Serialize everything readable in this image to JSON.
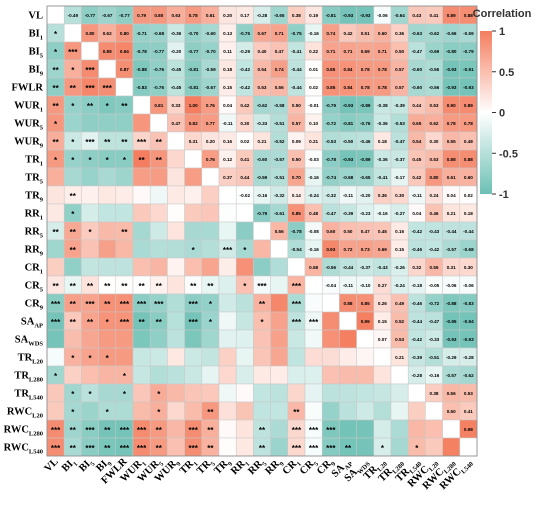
{
  "chart_data": {
    "type": "heatmap",
    "layout": "lower triangle: significance stars, upper triangle: coefficients",
    "variables": [
      {
        "name": "VL",
        "sub": ""
      },
      {
        "name": "BI",
        "sub": "1"
      },
      {
        "name": "BI",
        "sub": "5"
      },
      {
        "name": "BI",
        "sub": "9"
      },
      {
        "name": "FWLR",
        "sub": ""
      },
      {
        "name": "WUR",
        "sub": "1"
      },
      {
        "name": "WUR",
        "sub": "5"
      },
      {
        "name": "WUR",
        "sub": "9"
      },
      {
        "name": "TR",
        "sub": "1"
      },
      {
        "name": "TR",
        "sub": "5"
      },
      {
        "name": "TR",
        "sub": "9"
      },
      {
        "name": "RR",
        "sub": "1"
      },
      {
        "name": "RR",
        "sub": "5"
      },
      {
        "name": "RR",
        "sub": "9"
      },
      {
        "name": "CR",
        "sub": "1"
      },
      {
        "name": "CR",
        "sub": "5"
      },
      {
        "name": "CR",
        "sub": "9"
      },
      {
        "name": "SA",
        "sub": "AP"
      },
      {
        "name": "SA",
        "sub": "WDS"
      },
      {
        "name": "TR",
        "sub": "L20"
      },
      {
        "name": "TR",
        "sub": "L280"
      },
      {
        "name": "TR",
        "sub": "L540"
      },
      {
        "name": "RWC",
        "sub": "L20"
      },
      {
        "name": "RWC",
        "sub": "L280"
      },
      {
        "name": "RWC",
        "sub": "L540"
      }
    ],
    "upper": [
      [
        -0.49,
        -0.77,
        -0.67,
        -0.77,
        0.79,
        0.8,
        0.63,
        0.78,
        0.61,
        0.2,
        0.17,
        -0.28,
        -0.65,
        0.38,
        0.19,
        -0.81,
        -0.93,
        -0.93,
        -0.06,
        -0.64,
        0.43,
        0.41,
        0.89,
        0.88
      ],
      [
        0.8,
        0.62,
        0.8,
        -0.71,
        -0.68,
        -0.36,
        -0.7,
        -0.6,
        0.13,
        -0.75,
        0.67,
        0.71,
        -0.75,
        -0.16,
        0.74,
        0.42,
        0.51,
        0.6,
        0.36,
        -0.63,
        -0.62,
        -0.66,
        -0.59
      ],
      [
        0.89,
        0.94,
        -0.78,
        -0.77,
        -0.2,
        -0.77,
        -0.7,
        0.11,
        -0.29,
        0.4,
        0.47,
        -0.41,
        0.22,
        0.71,
        0.71,
        0.69,
        0.71,
        0.5,
        -0.47,
        -0.69,
        -0.8,
        -0.79
      ],
      [
        0.87,
        -0.88,
        -0.76,
        -0.45,
        -0.81,
        -0.59,
        0.18,
        -0.42,
        0.54,
        0.74,
        -0.44,
        0.01,
        0.85,
        0.84,
        0.78,
        0.78,
        0.57,
        -0.6,
        -0.56,
        -0.93,
        -0.91
      ],
      [
        -0.83,
        -0.76,
        -0.45,
        -0.81,
        -0.67,
        0.15,
        -0.42,
        0.53,
        0.56,
        -0.44,
        0.02,
        0.85,
        0.84,
        0.78,
        0.78,
        0.57,
        -0.6,
        -0.56,
        -0.93,
        -0.93
      ],
      [
        0.81,
        0.33,
        1.0,
        0.76,
        0.04,
        0.42,
        -0.62,
        -0.58,
        0.5,
        -0.01,
        -0.79,
        -0.93,
        -0.89,
        -0.38,
        -0.39,
        0.44,
        0.53,
        0.9,
        0.89
      ],
      [
        0.47,
        0.82,
        0.77,
        -0.11,
        0.3,
        -0.33,
        -0.51,
        0.57,
        0.1,
        -0.72,
        -0.81,
        -0.76,
        -0.36,
        -0.53,
        0.65,
        0.62,
        0.78,
        0.78
      ],
      [
        0.31,
        0.2,
        0.16,
        0.02,
        0.21,
        -0.52,
        0.09,
        0.21,
        -0.53,
        -0.5,
        -0.46,
        0.18,
        -0.47,
        0.54,
        0.3,
        0.55,
        0.48
      ],
      [
        0.76,
        0.12,
        0.41,
        -0.6,
        -0.57,
        0.5,
        -0.03,
        -0.78,
        -0.93,
        -0.89,
        -0.36,
        -0.37,
        0.45,
        0.53,
        0.88,
        0.88
      ],
      [
        0.37,
        0.44,
        -0.59,
        -0.51,
        0.7,
        -0.16,
        -0.74,
        -0.68,
        -0.65,
        -0.41,
        -0.17,
        0.42,
        0.8,
        0.61,
        0.6
      ],
      [
        -0.02,
        -0.16,
        -0.32,
        0.14,
        -0.24,
        -0.32,
        -0.11,
        -0.2,
        0.36,
        0.3,
        -0.11,
        0.24,
        0.04,
        0.02
      ],
      [
        -0.79,
        -0.61,
        0.85,
        0.48,
        -0.47,
        -0.39,
        -0.23,
        -0.16,
        -0.27,
        0.04,
        0.46,
        0.21,
        0.18
      ],
      [
        0.56,
        -0.78,
        -0.08,
        0.6,
        0.5,
        0.47,
        0.45,
        0.16,
        -0.42,
        -0.43,
        -0.44,
        -0.44
      ],
      [
        -0.54,
        -0.16,
        0.93,
        0.72,
        0.73,
        0.69,
        0.15,
        -0.46,
        -0.42,
        -0.57,
        -0.68
      ],
      [
        0.58,
        -0.56,
        -0.44,
        -0.37,
        -0.43,
        -0.26,
        0.32,
        0.55,
        0.31,
        0.3
      ],
      [
        -0.04,
        -0.11,
        -0.1,
        0.27,
        -0.24,
        -0.18,
        -0.05,
        -0.06,
        -0.06
      ],
      [
        0.88,
        0.85,
        0.26,
        0.49,
        -0.46,
        -0.72,
        -0.88,
        -0.83
      ],
      [
        0.99,
        0.15,
        0.52,
        -0.44,
        -0.47,
        -0.95,
        -0.94
      ],
      [
        0.07,
        0.53,
        -0.42,
        -0.33,
        -0.93,
        -0.93
      ],
      [
        0.21,
        -0.39,
        -0.51,
        -0.29,
        -0.28
      ],
      [
        -0.28,
        -0.16,
        -0.57,
        -0.62
      ],
      [
        0.38,
        0.56,
        0.53
      ],
      [
        0.5,
        0.41
      ],
      [
        0.98
      ]
    ],
    "lower_stars": [
      [
        "**"
      ],
      [
        "*",
        "**"
      ],
      [
        "*",
        "***",
        "***"
      ],
      [
        "**",
        "*",
        "***",
        "***"
      ],
      [
        "**",
        "**",
        "***",
        "***",
        "**"
      ],
      [
        "**",
        "*",
        "**",
        "*",
        "**",
        "**"
      ],
      [
        "*",
        "",
        "",
        "",
        "",
        "",
        ""
      ],
      [
        "**",
        "*",
        "***",
        "**",
        "**",
        "***",
        "**",
        ""
      ],
      [
        "*",
        "*",
        "*",
        "*",
        "*",
        "**",
        "**",
        "",
        "**"
      ],
      [
        "",
        "",
        "",
        "",
        "",
        "",
        "",
        "",
        "",
        ""
      ],
      [
        "",
        "**",
        "",
        "",
        "",
        "",
        "",
        "",
        "",
        "",
        ""
      ],
      [
        "",
        "*",
        "",
        "",
        "",
        "",
        "",
        "",
        "",
        "",
        "",
        ""
      ],
      [
        "**",
        "**",
        "*",
        "",
        "**",
        "",
        "",
        "",
        "",
        "",
        "",
        "",
        ""
      ],
      [
        "",
        "**",
        "",
        "",
        "",
        "",
        "",
        "",
        "*",
        "",
        "***",
        "*",
        ""
      ],
      [
        "",
        "",
        "",
        "",
        "",
        "",
        "",
        "",
        "",
        "",
        "",
        "",
        "",
        ""
      ],
      [
        "**",
        "**",
        "**",
        "**",
        "**",
        "**",
        "**",
        "",
        "**",
        "**",
        "",
        "*",
        "***",
        "",
        "***",
        ""
      ],
      [
        "***",
        "**",
        "***",
        "**",
        "***",
        "***",
        "***",
        "",
        "***",
        "*",
        "",
        "",
        "**",
        "",
        "***",
        ""
      ],
      [
        "***",
        "**",
        "**",
        "*",
        "***",
        "**",
        "**",
        "",
        "***",
        "*",
        "",
        "",
        "*",
        "",
        "***",
        "***",
        ""
      ],
      [
        "",
        "",
        "",
        "",
        "",
        "",
        "",
        "",
        "",
        "",
        "",
        "",
        "",
        "",
        "",
        "",
        ""
      ],
      [
        "",
        "*",
        "*",
        "*",
        "",
        "",
        "",
        "",
        "",
        "",
        "",
        "",
        "",
        "",
        "",
        "",
        "",
        ""
      ],
      [
        "*",
        "",
        "",
        "",
        "*",
        "",
        "",
        "",
        "",
        "",
        "",
        "",
        "",
        "",
        "",
        "",
        "",
        "",
        ""
      ],
      [
        "",
        "*",
        "*",
        "",
        "*",
        "",
        "*",
        "",
        "",
        "",
        "",
        "",
        "",
        "",
        "",
        "",
        "",
        "",
        "",
        ""
      ],
      [
        "",
        "*",
        "",
        "*",
        "",
        "",
        "*",
        "",
        "",
        "**",
        "",
        "",
        "",
        "",
        "**",
        "",
        "",
        "",
        "",
        "",
        ""
      ],
      [
        "***",
        "**",
        "***",
        "**",
        "***",
        "***",
        "**",
        "",
        "***",
        "**",
        "",
        "",
        "**",
        "",
        "***",
        "***",
        "***",
        "",
        "",
        "",
        "",
        ""
      ],
      [
        "***",
        "**",
        "***",
        "**",
        "***",
        "***",
        "**",
        "",
        "***",
        "**",
        "",
        "",
        "**",
        "",
        "***",
        "***",
        "***",
        "**",
        "",
        "*",
        "",
        "*",
        ""
      ]
    ],
    "colorbar": {
      "title": "Correlation",
      "range": [
        -1,
        1
      ],
      "ticks": [
        1,
        0.5,
        0,
        -0.5,
        -1
      ],
      "tick_labels": [
        "1",
        "0.5",
        "0",
        "-0.5",
        "-1"
      ],
      "colors": {
        "positive": "#f47e5f",
        "neutral": "#ffffff",
        "negative": "#6cc0b4"
      }
    }
  }
}
